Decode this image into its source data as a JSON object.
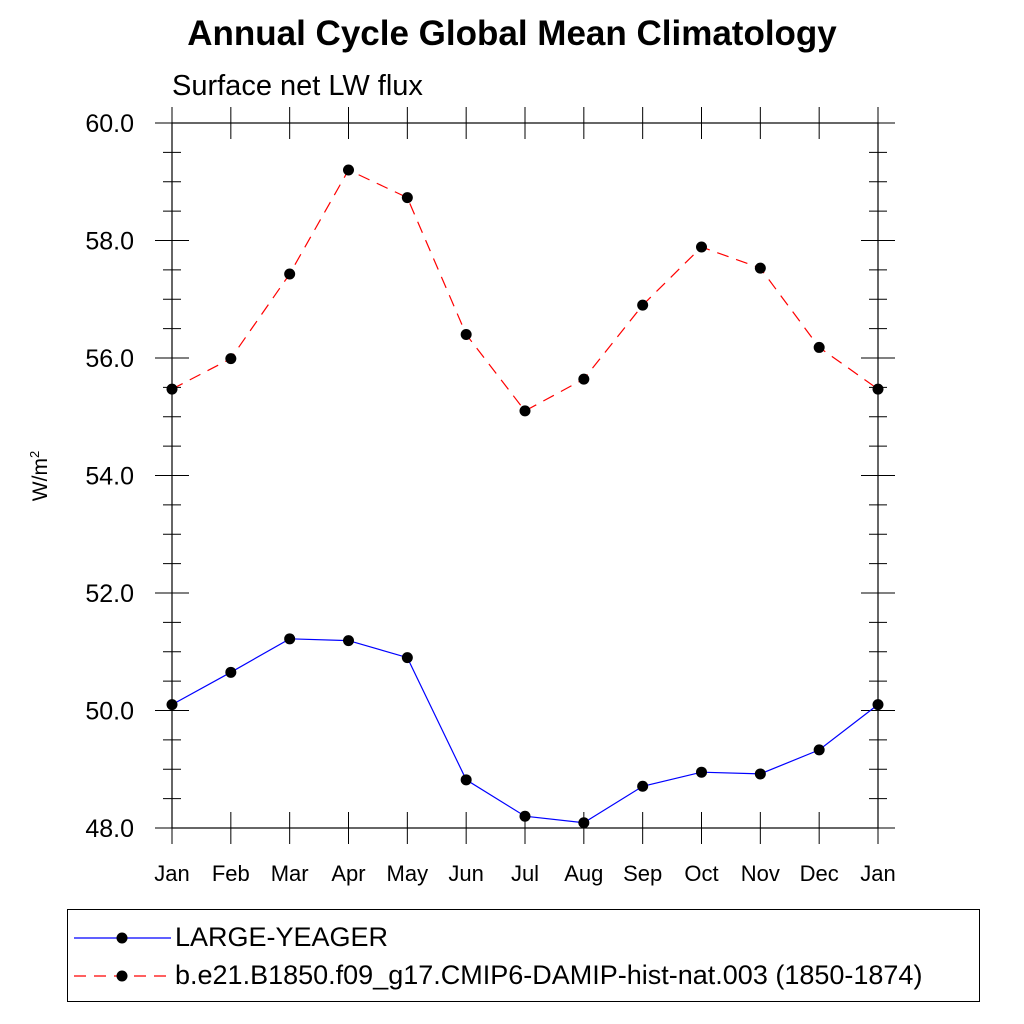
{
  "chart_data": {
    "type": "line",
    "title": "Annual Cycle Global Mean Climatology",
    "subtitle": "Surface net LW flux",
    "ylabel": "W/m",
    "ylabel_sup": "2",
    "xlabel": "",
    "categories": [
      "Jan",
      "Feb",
      "Mar",
      "Apr",
      "May",
      "Jun",
      "Jul",
      "Aug",
      "Sep",
      "Oct",
      "Nov",
      "Dec",
      "Jan"
    ],
    "ylim": [
      48.0,
      60.0
    ],
    "yticks": [
      "48.0",
      "50.0",
      "52.0",
      "54.0",
      "56.0",
      "58.0",
      "60.0"
    ],
    "grid": false,
    "legend_position": "bottom",
    "series": [
      {
        "name": "LARGE-YEAGER",
        "color": "#0000ff",
        "style": "solid",
        "values": [
          50.1,
          50.65,
          51.22,
          51.19,
          50.9,
          48.82,
          48.2,
          48.09,
          48.71,
          48.95,
          48.92,
          49.33,
          50.1
        ]
      },
      {
        "name": "b.e21.B1850.f09_g17.CMIP6-DAMIP-hist-nat.003 (1850-1874)",
        "color": "#ff0000",
        "style": "dashed",
        "values": [
          55.47,
          55.99,
          57.43,
          59.2,
          58.73,
          56.4,
          55.1,
          55.64,
          56.9,
          57.89,
          57.53,
          56.18,
          55.47
        ]
      }
    ]
  }
}
